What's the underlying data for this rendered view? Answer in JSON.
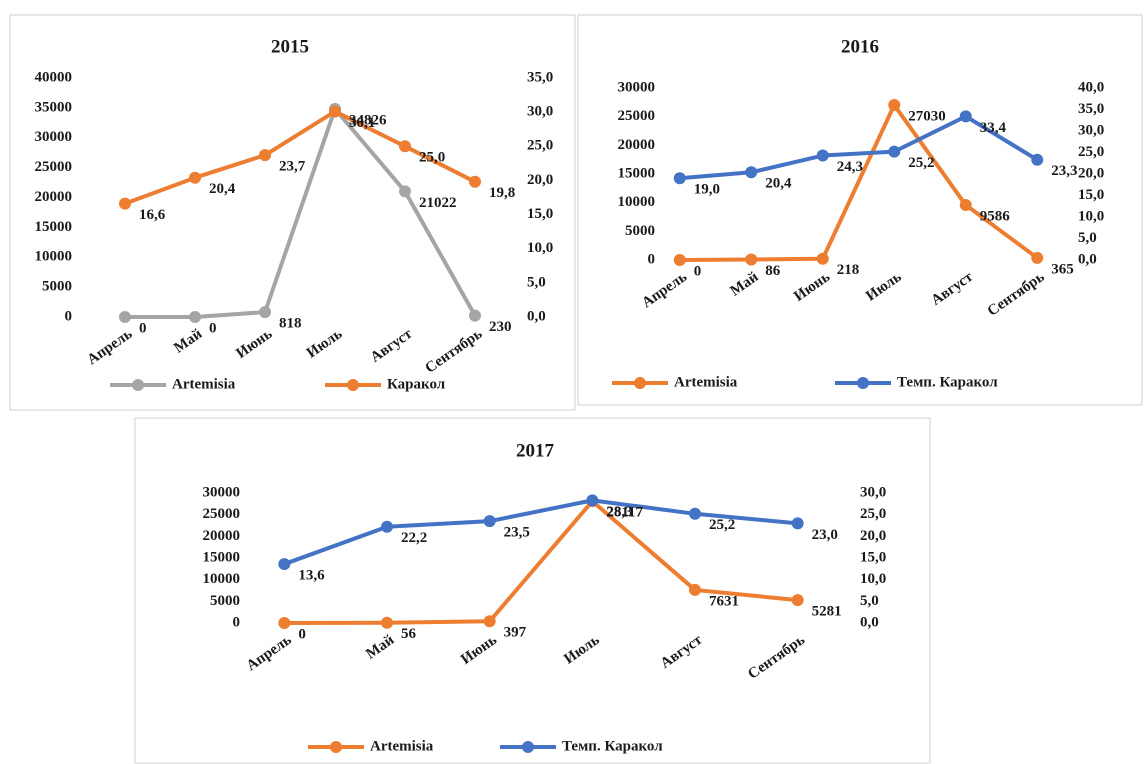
{
  "chart_data": [
    {
      "type": "line",
      "title": "2015",
      "categories": [
        "Апрель",
        "Май",
        "Июнь",
        "Июль",
        "Август",
        "Сентябрь"
      ],
      "series": [
        {
          "name": "Artemisia",
          "color": "#a5a5a5",
          "values": [
            0,
            0,
            818,
            34826,
            21022,
            230
          ]
        },
        {
          "name": "Каракол",
          "color": "#ed7d31",
          "axis": "y2",
          "values": [
            16.6,
            20.4,
            23.7,
            30.1,
            25.0,
            19.8
          ],
          "value_labels": [
            "16,6",
            "20,4",
            "23,7",
            "30,1",
            "25,0",
            "19,8"
          ]
        }
      ],
      "ylim": [
        0,
        40000
      ],
      "yticks": [
        0,
        5000,
        10000,
        15000,
        20000,
        25000,
        30000,
        35000,
        40000
      ],
      "y2lim": [
        0,
        35
      ],
      "y2ticks": [
        {
          "value": 0,
          "label": "0,0"
        },
        {
          "value": 5,
          "label": "5,0"
        },
        {
          "value": 10,
          "label": "10,0"
        },
        {
          "value": 15,
          "label": "15,0"
        },
        {
          "value": 20,
          "label": "20,0"
        },
        {
          "value": 25,
          "label": "25,0"
        },
        {
          "value": 30,
          "label": "30,0"
        },
        {
          "value": 35,
          "label": "35,0"
        }
      ],
      "legend": "bottom"
    },
    {
      "type": "line",
      "title": "2016",
      "categories": [
        "Апрель",
        "Май",
        "Июнь",
        "Июль",
        "Август",
        "Сентябрь"
      ],
      "series": [
        {
          "name": "Artemisia",
          "color": "#ed7d31",
          "values": [
            0,
            86,
            218,
            27030,
            9586,
            365
          ]
        },
        {
          "name": "Темп. Каракол",
          "color": "#4472c4",
          "axis": "y2",
          "values": [
            19.0,
            20.4,
            24.3,
            25.2,
            33.4,
            23.3
          ],
          "value_labels": [
            "19,0",
            "20,4",
            "24,3",
            "25,2",
            "33,4",
            "23,3"
          ]
        }
      ],
      "ylim": [
        0,
        30000
      ],
      "yticks": [
        0,
        5000,
        10000,
        15000,
        20000,
        25000,
        30000
      ],
      "y2lim": [
        0,
        40
      ],
      "y2ticks": [
        {
          "value": 0,
          "label": "0,0"
        },
        {
          "value": 5,
          "label": "5,0"
        },
        {
          "value": 10,
          "label": "10,0"
        },
        {
          "value": 15,
          "label": "15,0"
        },
        {
          "value": 20,
          "label": "20,0"
        },
        {
          "value": 25,
          "label": "25,0"
        },
        {
          "value": 30,
          "label": "30,0"
        },
        {
          "value": 35,
          "label": "35,0"
        },
        {
          "value": 40,
          "label": "40,0"
        }
      ],
      "legend": "bottom"
    },
    {
      "type": "line",
      "title": "2017",
      "categories": [
        "Апрель",
        "Май",
        "Июнь",
        "Июль",
        "Август",
        "Сентябрь"
      ],
      "series": [
        {
          "name": "Artemisia",
          "color": "#ed7d31",
          "values": [
            0,
            56,
            397,
            28117,
            7631,
            5281
          ]
        },
        {
          "name": "Темп. Каракол",
          "color": "#4472c4",
          "axis": "y2",
          "values": [
            13.6,
            22.2,
            23.5,
            28.3,
            25.2,
            23.0
          ],
          "value_labels": [
            "13,6",
            "22,2",
            "23,5",
            "28,3",
            "25,2",
            "23,0"
          ]
        }
      ],
      "ylim": [
        0,
        30000
      ],
      "yticks": [
        0,
        5000,
        10000,
        15000,
        20000,
        25000,
        30000
      ],
      "y2lim": [
        0,
        30
      ],
      "y2ticks": [
        {
          "value": 0,
          "label": "0,0"
        },
        {
          "value": 5,
          "label": "5,0"
        },
        {
          "value": 10,
          "label": "10,0"
        },
        {
          "value": 15,
          "label": "15,0"
        },
        {
          "value": 20,
          "label": "20,0"
        },
        {
          "value": 25,
          "label": "25,0"
        },
        {
          "value": 30,
          "label": "30,0"
        }
      ],
      "legend": "bottom"
    }
  ]
}
